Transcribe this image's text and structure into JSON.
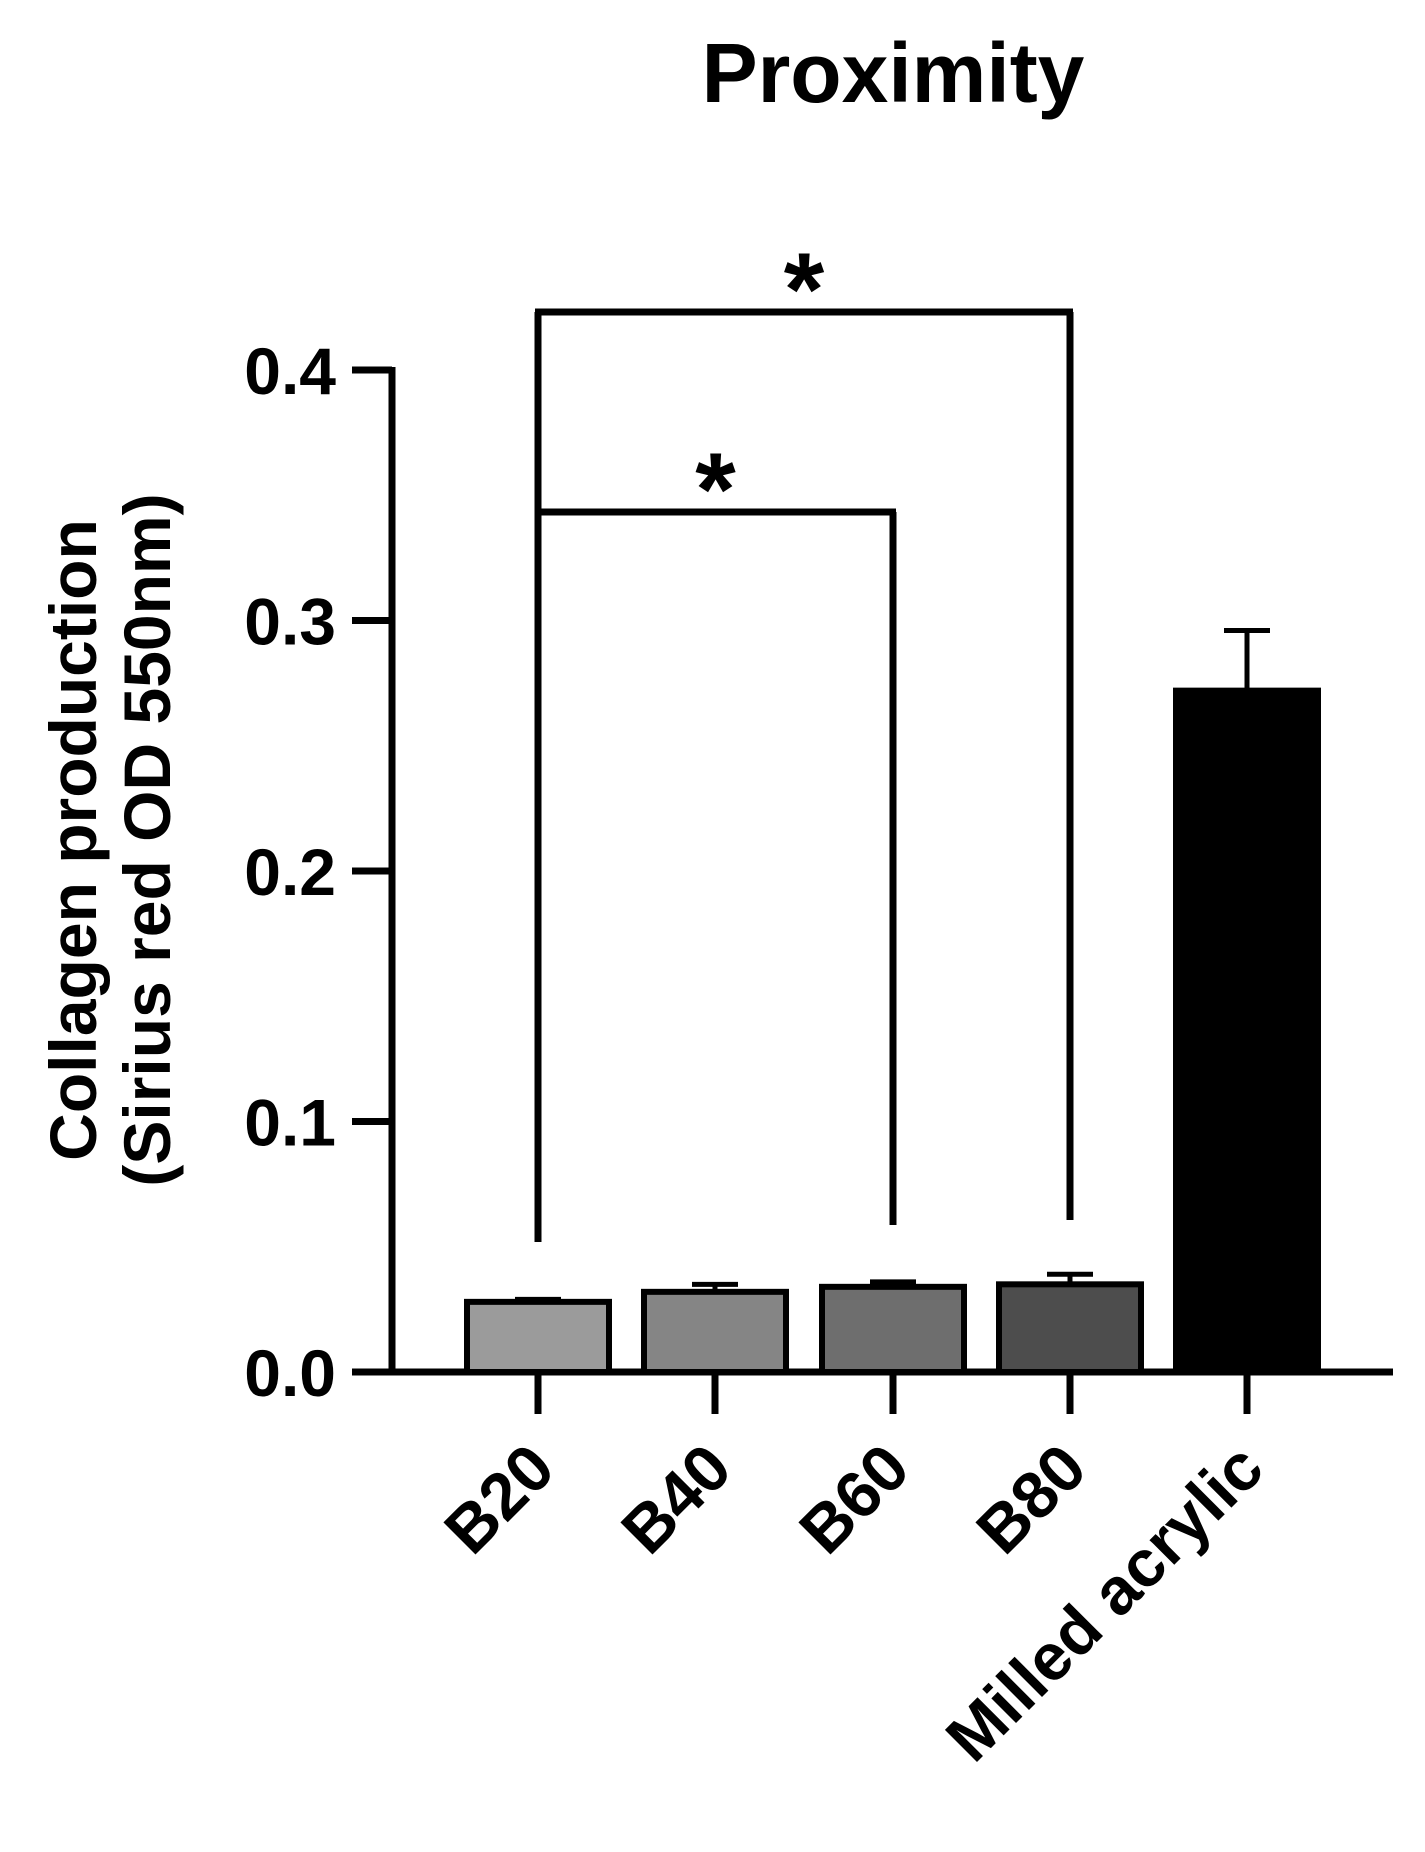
{
  "chart_data": {
    "type": "bar",
    "title": "Proximity",
    "ylabel": [
      "Collagen production",
      "(Sirius red OD 550nm)"
    ],
    "xlabel": "",
    "categories": [
      "B20",
      "B40",
      "B60",
      "B80",
      "Milled acrylic"
    ],
    "values": [
      0.028,
      0.032,
      0.034,
      0.035,
      0.272
    ],
    "errors": [
      0.001,
      0.003,
      0.002,
      0.004,
      0.024
    ],
    "colors": [
      "#9b9b9b",
      "#858585",
      "#6e6e6e",
      "#4d4d4d",
      "#000000"
    ],
    "ylim": [
      0,
      0.4
    ],
    "yticks": [
      "0.0",
      "0.1",
      "0.2",
      "0.3",
      "0.4"
    ],
    "yticks_values": [
      0,
      0.1,
      0.2,
      0.3,
      0.4
    ],
    "grid": false,
    "significance": [
      {
        "from": "B20",
        "to": "B60",
        "label": "*"
      },
      {
        "from": "B20",
        "to": "B80",
        "label": "*"
      }
    ]
  }
}
